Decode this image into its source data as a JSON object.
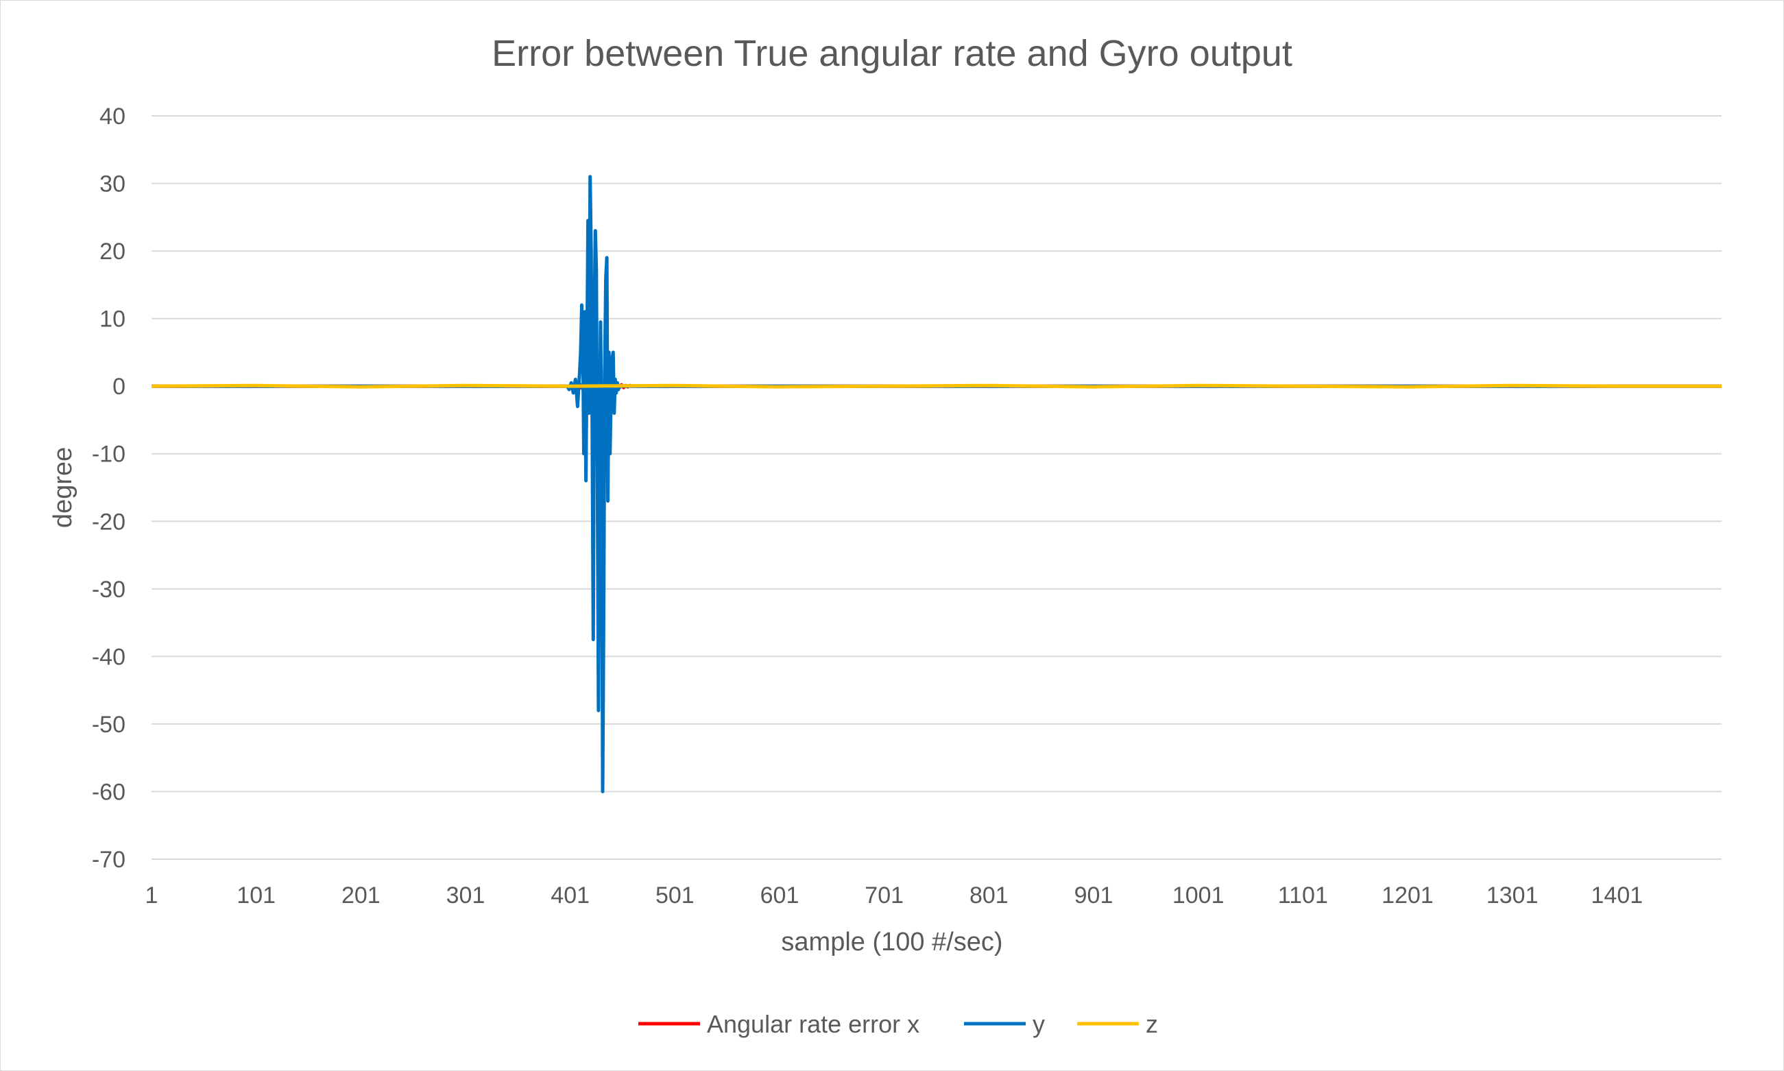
{
  "chart_data": {
    "type": "line",
    "title": "Error between True angular rate and Gyro output",
    "xlabel": "sample (100 #/sec)",
    "ylabel": "degree",
    "ylim": [
      -70,
      40
    ],
    "y_ticks": [
      "40",
      "30",
      "20",
      "10",
      "0",
      "-10",
      "-20",
      "-30",
      "-40",
      "-50",
      "-60",
      "-70"
    ],
    "y_tick_values": [
      40,
      30,
      20,
      10,
      0,
      -10,
      -20,
      -30,
      -40,
      -50,
      -60,
      -70
    ],
    "x_range": [
      1,
      1501
    ],
    "x_ticks": [
      "1",
      "101",
      "201",
      "301",
      "401",
      "501",
      "601",
      "701",
      "801",
      "901",
      "1001",
      "1101",
      "1201",
      "1301",
      "1401"
    ],
    "x_tick_values": [
      1,
      101,
      201,
      301,
      401,
      501,
      601,
      701,
      801,
      901,
      1001,
      1101,
      1201,
      1301,
      1401
    ],
    "grid": true,
    "legend_position": "bottom",
    "series": [
      {
        "name": "Angular rate error x",
        "color": "#ff0000",
        "x": [
          1,
          400,
          402,
          404,
          406,
          408,
          410,
          412,
          414,
          416,
          418,
          420,
          422,
          424,
          426,
          428,
          430,
          432,
          434,
          436,
          438,
          440,
          442,
          444,
          446,
          448,
          450,
          452,
          454,
          456,
          458,
          460,
          1501
        ],
        "values": [
          0,
          0,
          0.2,
          -0.3,
          0.3,
          -0.2,
          0.3,
          -0.3,
          0.2,
          -0.2,
          0.3,
          -0.3,
          0.2,
          -0.2,
          0.3,
          -0.3,
          0.2,
          -0.2,
          0.3,
          -0.3,
          0.2,
          -0.2,
          0.3,
          -0.3,
          0.2,
          -0.2,
          0.2,
          -0.2,
          0.1,
          -0.1,
          0.1,
          0,
          0
        ]
      },
      {
        "name": "y",
        "color": "#0070c0",
        "x": [
          1,
          398,
          400,
          402,
          404,
          406,
          408,
          410,
          411,
          412,
          413,
          414,
          415,
          416,
          417,
          418,
          419,
          420,
          421,
          422,
          423,
          424,
          425,
          426,
          427,
          428,
          429,
          430,
          431,
          432,
          433,
          434,
          435,
          436,
          437,
          438,
          439,
          440,
          441,
          442,
          443,
          444,
          445,
          446,
          447,
          448,
          449,
          450,
          451,
          452,
          453,
          454,
          455,
          456,
          457,
          458,
          460,
          1501
        ],
        "values": [
          0,
          0,
          -0.5,
          0.5,
          -1,
          1,
          -3,
          2,
          5,
          12,
          7,
          -10,
          11,
          -14,
          5,
          24.5,
          -4,
          31,
          20,
          -5,
          -37.5,
          10,
          23,
          17,
          -15,
          -48,
          -10,
          9.5,
          -5,
          -60,
          -34,
          2,
          16,
          19,
          -17,
          5,
          -10,
          -2,
          4,
          5,
          -4,
          1,
          -1,
          0.5,
          -0.5,
          0,
          0,
          0,
          0,
          0,
          0,
          0,
          0,
          0,
          0,
          0,
          0,
          0
        ]
      },
      {
        "name": "z",
        "color": "#ffc000",
        "x": [
          1,
          100,
          200,
          300,
          400,
          500,
          600,
          700,
          800,
          900,
          1000,
          1100,
          1200,
          1300,
          1400,
          1501
        ],
        "values": [
          0,
          0.1,
          -0.1,
          0.1,
          0,
          0.1,
          -0.1,
          0,
          0.1,
          -0.1,
          0.1,
          0,
          -0.1,
          0.1,
          0,
          0
        ]
      }
    ]
  }
}
